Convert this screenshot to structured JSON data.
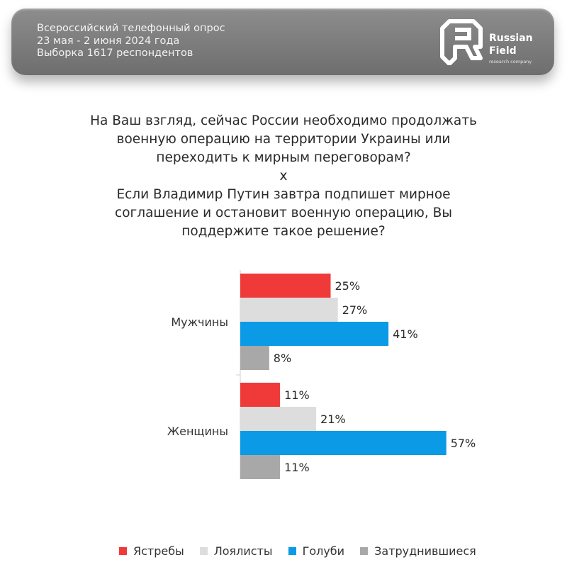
{
  "header": {
    "lines": [
      "Всероссийский телефонный опрос",
      "23 мая - 2 июня 2024 года",
      "Выборка 1617 респондентов"
    ],
    "logo": {
      "name_line1": "Russian",
      "name_line2": "Field",
      "tagline": "research company",
      "icon": "rf-logo-icon"
    }
  },
  "question": {
    "lines": [
      "На Ваш взгляд, сейчас России необходимо продолжать",
      "военную операцию на территории Украины или",
      "переходить к мирным переговорам?",
      "х",
      "Если Владимир Путин завтра подпишет мирное",
      "соглашение и остановит военную операцию, Вы",
      "поддержите такое решение?"
    ]
  },
  "chart_data": {
    "type": "bar",
    "orientation": "horizontal",
    "categories": [
      "Мужчины",
      "Женщины"
    ],
    "series": [
      {
        "name": "Ястребы",
        "color": "#f03a3a",
        "values": [
          25,
          11
        ]
      },
      {
        "name": "Лоялисты",
        "color": "#dddddd",
        "values": [
          27,
          21
        ]
      },
      {
        "name": "Голуби",
        "color": "#0a9ae6",
        "values": [
          41,
          57
        ]
      },
      {
        "name": "Затруднившиеся",
        "color": "#a8a8a8",
        "values": [
          8,
          11
        ]
      }
    ],
    "value_suffix": "%",
    "xlim": [
      0,
      100
    ],
    "grid": false,
    "legend_position": "bottom"
  }
}
